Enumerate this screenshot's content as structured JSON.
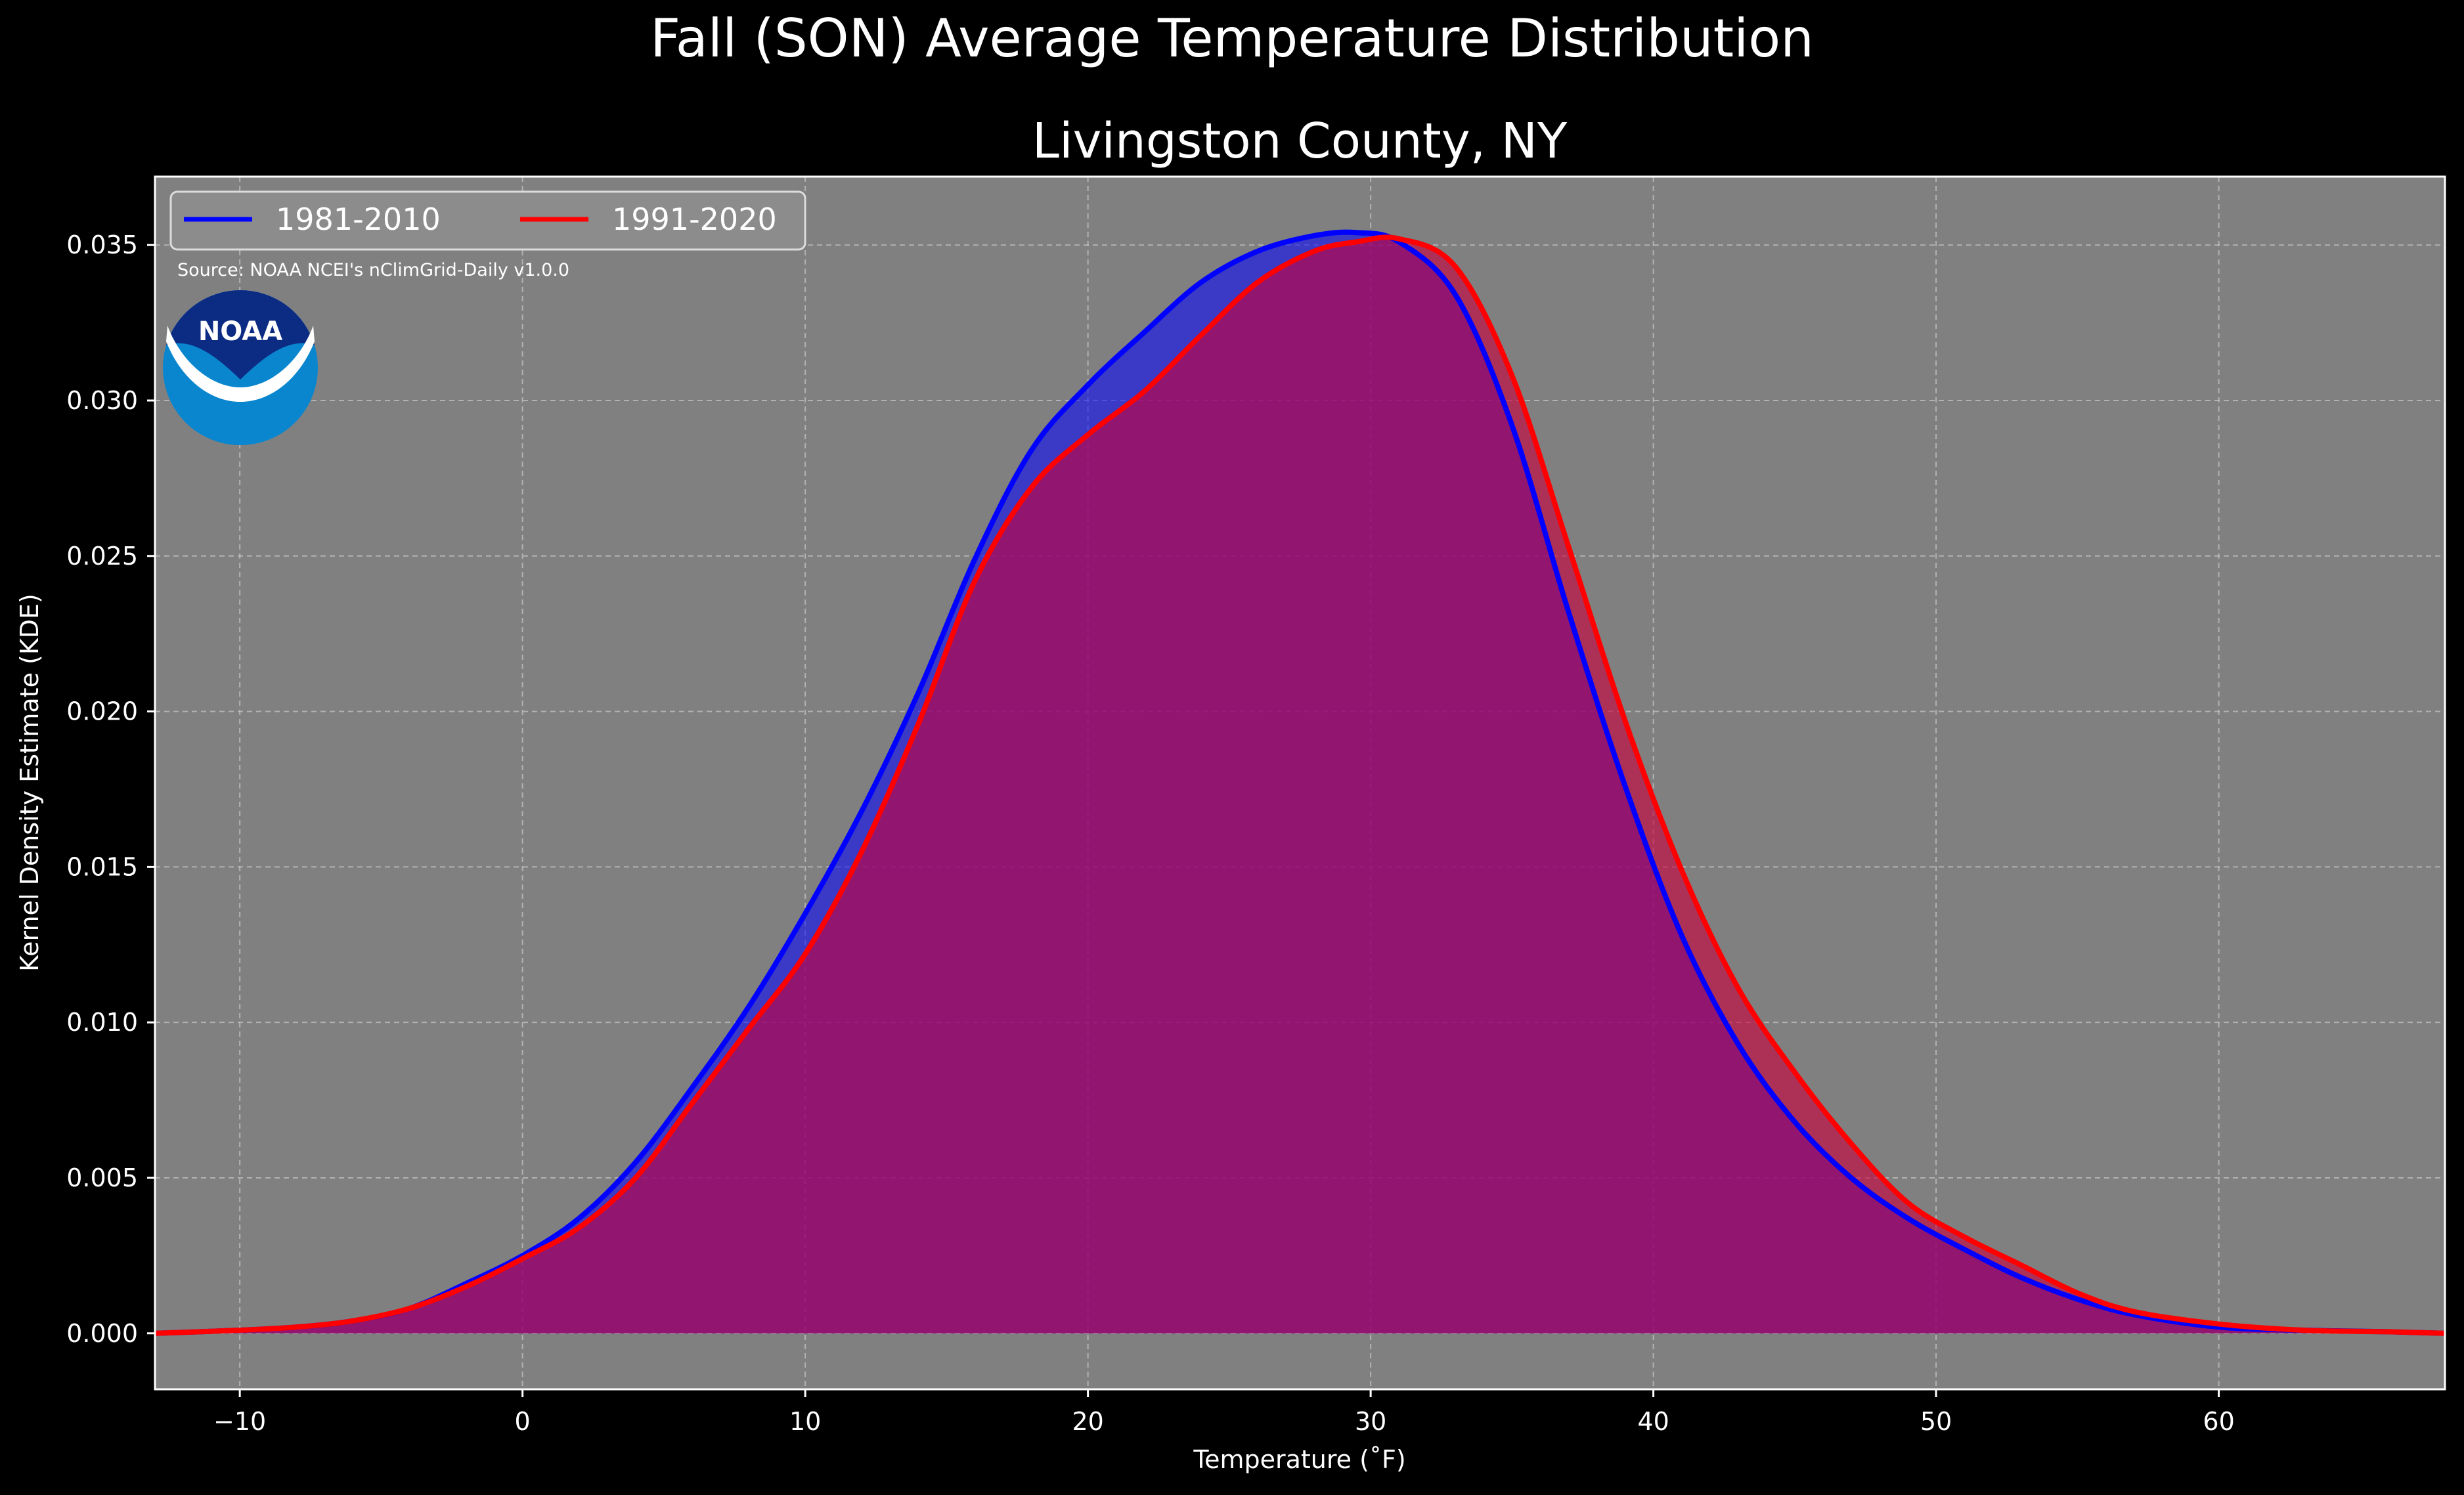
{
  "chart_data": {
    "type": "area",
    "title": "Fall (SON) Average Temperature Distribution",
    "subtitle": "Livingston County, NY",
    "xlabel": "Temperature (˚F)",
    "ylabel": "Kernel Density Estimate (KDE)",
    "source_note": "Source: NOAA NCEI's nClimGrid-Daily v1.0.0",
    "logo_text": "NOAA",
    "xlim": [
      -13,
      68
    ],
    "ylim": [
      -0.0018,
      0.0372
    ],
    "x_ticks": [
      -10,
      0,
      10,
      20,
      30,
      40,
      50,
      60
    ],
    "x_tick_labels": [
      "−10",
      "0",
      "10",
      "20",
      "30",
      "40",
      "50",
      "60"
    ],
    "y_ticks": [
      0,
      0.005,
      0.01,
      0.015,
      0.02,
      0.025,
      0.03,
      0.035
    ],
    "y_tick_labels": [
      "0.000",
      "0.005",
      "0.010",
      "0.015",
      "0.020",
      "0.025",
      "0.030",
      "0.035"
    ],
    "grid": true,
    "legend_position": "top-left",
    "colors": {
      "figure_bg": "#000000",
      "axes_bg": "#808080",
      "grid": "#c8c8c8"
    },
    "series": [
      {
        "name": "1981-2010",
        "color": "#0000ff",
        "fill": "#0000ff",
        "x": [
          -13,
          -10,
          -8,
          -6,
          -4,
          -2,
          0,
          2,
          4,
          6,
          8,
          10,
          12,
          14,
          16,
          18,
          20,
          22,
          24,
          26,
          28,
          29.5,
          31,
          33,
          35,
          37,
          39,
          41,
          43,
          45,
          47,
          49,
          51,
          53,
          55,
          57,
          60,
          63,
          66,
          68
        ],
        "y": [
          0.0,
          0.0001,
          0.0002,
          0.0004,
          0.0008,
          0.0016,
          0.0025,
          0.0037,
          0.0055,
          0.0079,
          0.0105,
          0.0135,
          0.0168,
          0.0206,
          0.0249,
          0.0284,
          0.0305,
          0.0322,
          0.0338,
          0.0348,
          0.0353,
          0.0354,
          0.0351,
          0.0334,
          0.0292,
          0.0232,
          0.0176,
          0.0128,
          0.0093,
          0.0068,
          0.005,
          0.0037,
          0.0027,
          0.0018,
          0.0011,
          0.0006,
          0.0002,
          0.0001,
          5e-05,
          0.0
        ]
      },
      {
        "name": "1991-2020",
        "color": "#ff0000",
        "fill": "#c8003c",
        "x": [
          -13,
          -10,
          -8,
          -6,
          -4,
          -2,
          0,
          2,
          4,
          6,
          8,
          10,
          12,
          14,
          16,
          18,
          20,
          22,
          24,
          26,
          28,
          29.5,
          31,
          33,
          35,
          37,
          39,
          41,
          43,
          45,
          47,
          49,
          51,
          53,
          55,
          57,
          60,
          63,
          66,
          68
        ],
        "y": [
          0.0,
          0.0001,
          0.0002,
          0.0004,
          0.0008,
          0.0015,
          0.0024,
          0.0034,
          0.005,
          0.0074,
          0.0098,
          0.0122,
          0.0155,
          0.0196,
          0.0242,
          0.0272,
          0.0289,
          0.0303,
          0.0321,
          0.0338,
          0.0348,
          0.0351,
          0.0352,
          0.0343,
          0.0308,
          0.0253,
          0.0197,
          0.0149,
          0.0111,
          0.0084,
          0.0061,
          0.0042,
          0.0031,
          0.0022,
          0.0013,
          0.0007,
          0.0003,
          0.0001,
          5e-05,
          0.0
        ]
      }
    ]
  }
}
